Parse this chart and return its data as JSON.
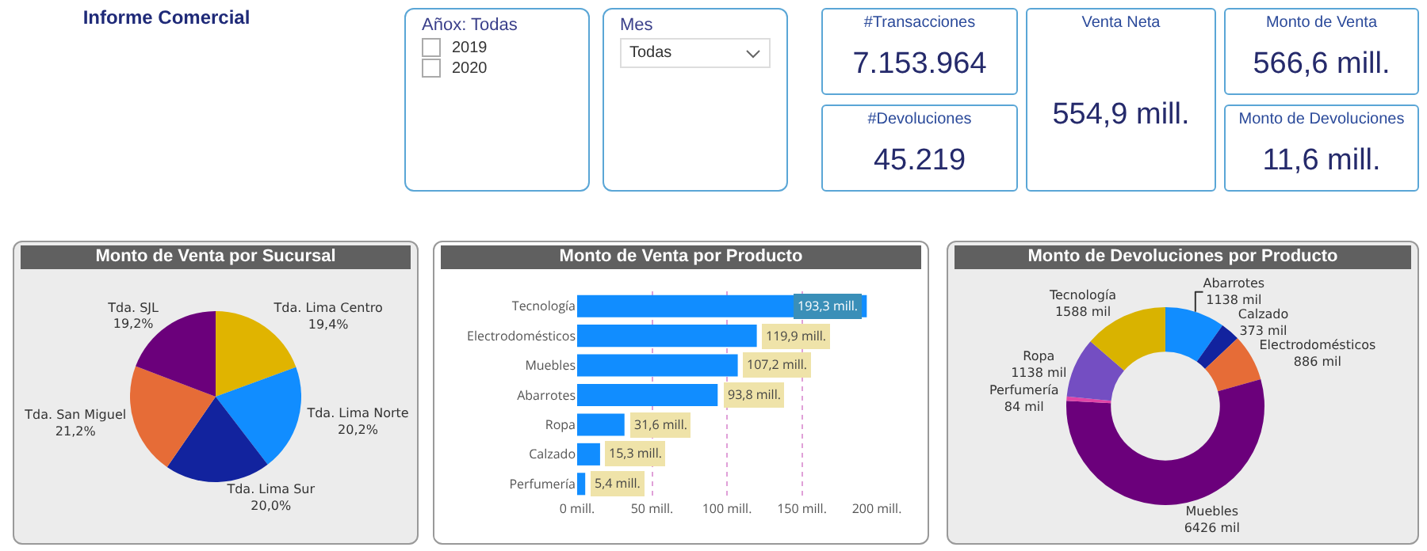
{
  "chart_data": [
    {
      "type": "other",
      "title": "Informe Comercial"
    },
    {
      "type": "other",
      "title": "Añox: Todas",
      "annotations": [
        "2019",
        "2020"
      ]
    },
    {
      "type": "other",
      "title": "Mes",
      "annotations": [
        "Todas"
      ]
    },
    {
      "type": "other",
      "title": "#Transacciones",
      "annotations": [
        "7.153.964"
      ]
    },
    {
      "type": "other",
      "title": "#Devoluciones",
      "annotations": [
        "45.219"
      ]
    },
    {
      "type": "other",
      "title": "Venta Neta",
      "annotations": [
        "554,9 mill."
      ]
    },
    {
      "type": "other",
      "title": "Monto de Venta",
      "annotations": [
        "566,6 mill."
      ]
    },
    {
      "type": "other",
      "title": "Monto de Devoluciones",
      "annotations": [
        "11,6 mill."
      ]
    },
    {
      "type": "pie",
      "title": "Monto de Venta por Sucursal",
      "categories": [
        "Tda. Lima Centro",
        "Tda. Lima Norte",
        "Tda. Lima Sur",
        "Tda. San Miguel",
        "Tda. SJL"
      ],
      "values": [
        19.4,
        20.2,
        20.0,
        21.2,
        19.2
      ],
      "value_labels": [
        "19,4%",
        "20,2%",
        "20,0%",
        "21,2%",
        "19,2%"
      ],
      "colors": [
        "#e0b400",
        "#118dff",
        "#12239e",
        "#e66c37",
        "#6b007b"
      ]
    },
    {
      "type": "bar",
      "orientation": "horizontal",
      "title": "Monto de Venta por Producto",
      "categories": [
        "Tecnología",
        "Electrodomésticos",
        "Muebles",
        "Abarrotes",
        "Ropa",
        "Calzado",
        "Perfumería"
      ],
      "values": [
        193.3,
        119.9,
        107.2,
        93.8,
        31.6,
        15.3,
        5.4
      ],
      "value_labels": [
        "193,3 mill.",
        "119,9 mill.",
        "107,2 mill.",
        "93,8 mill.",
        "31,6 mill.",
        "15,3 mill.",
        "5,4 mill."
      ],
      "color": "#118dff",
      "xlim": [
        0,
        200
      ],
      "xticks": [
        {
          "value": 0,
          "label": "0 mill."
        },
        {
          "value": 50,
          "label": "50 mill."
        },
        {
          "value": 100,
          "label": "100 mill."
        },
        {
          "value": 150,
          "label": "150 mill."
        },
        {
          "value": 200,
          "label": "200 mill."
        }
      ],
      "grid": "x"
    },
    {
      "type": "donut",
      "title": "Monto de Devoluciones por Producto",
      "categories": [
        "Abarrotes",
        "Calzado",
        "Electrodomésticos",
        "Muebles",
        "Perfumería",
        "Ropa",
        "Tecnología"
      ],
      "values": [
        1138,
        373,
        886,
        6426,
        84,
        1138,
        1588
      ],
      "value_labels": [
        "1138 mil",
        "373 mil",
        "886 mil",
        "6426 mil",
        "84 mil",
        "1138 mil",
        "1588 mil"
      ],
      "colors": [
        "#118dff",
        "#12239e",
        "#e66c37",
        "#6b007b",
        "#e044a7",
        "#744ec2",
        "#d9b300"
      ]
    }
  ]
}
